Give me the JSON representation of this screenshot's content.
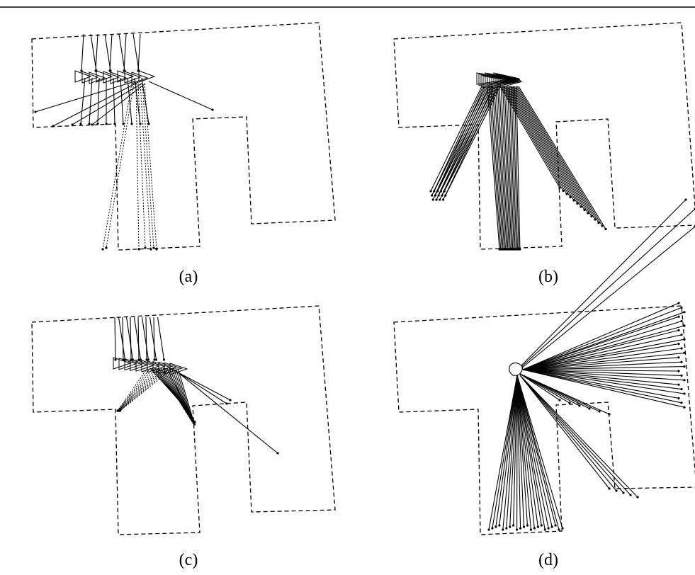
{
  "figure": {
    "panels": [
      {
        "id": "a",
        "caption": "(a)"
      },
      {
        "id": "b",
        "caption": "(b)"
      },
      {
        "id": "c",
        "caption": "(c)"
      },
      {
        "id": "d",
        "caption": "(d)"
      }
    ]
  },
  "colors": {
    "ink": "#000000",
    "background": "#ffffff"
  }
}
